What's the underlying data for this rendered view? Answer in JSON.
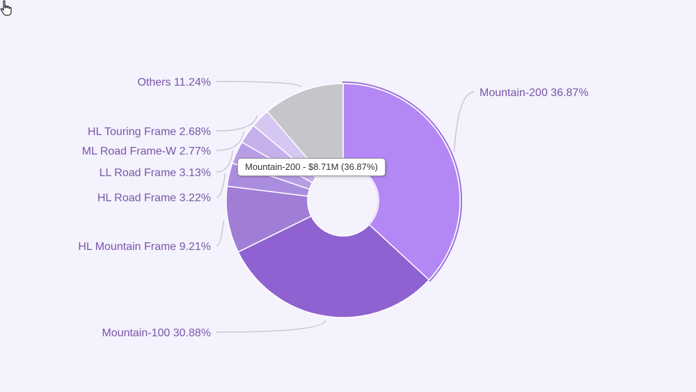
{
  "chart_data": {
    "type": "pie",
    "variant": "donut",
    "slices": [
      {
        "name": "Mountain-200",
        "label": "Mountain-200 36.87%",
        "value": 36.87,
        "color": "#b388f5"
      },
      {
        "name": "Mountain-100",
        "label": "Mountain-100 30.88%",
        "value": 30.88,
        "color": "#8e62d0"
      },
      {
        "name": "HL Mountain Frame",
        "label": "HL Mountain Frame 9.21%",
        "value": 9.21,
        "color": "#a07ed6"
      },
      {
        "name": "HL Road Frame",
        "label": "HL Road Frame 3.22%",
        "value": 3.22,
        "color": "#ab8de0"
      },
      {
        "name": "LL Road Frame",
        "label": "LL Road Frame 3.13%",
        "value": 3.13,
        "color": "#b89ce6"
      },
      {
        "name": "ML Road Frame-W",
        "label": "ML Road Frame-W 2.77%",
        "value": 2.77,
        "color": "#c6b0ec"
      },
      {
        "name": "HL Touring Frame",
        "label": "HL Touring Frame 2.68%",
        "value": 2.68,
        "color": "#d6c6f2"
      },
      {
        "name": "Others",
        "label": "Others 11.24%",
        "value": 11.24,
        "color": "#c6c5ca"
      }
    ],
    "highlight_color": "#9a72dc",
    "leader_color": "#c8c6d2",
    "label_color": "#7a55a8",
    "tooltip": "Mountain-200 - $8.71M (36.87%)"
  },
  "background": "#f3f2fd"
}
